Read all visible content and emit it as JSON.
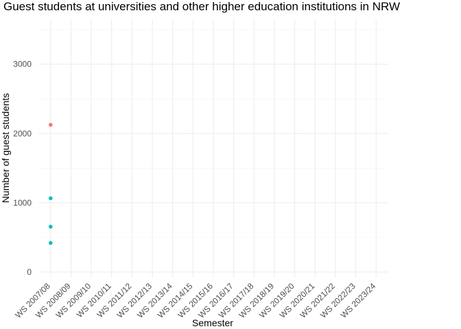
{
  "chart_data": {
    "type": "scatter",
    "title": "Guest students at universities and other higher education institutions in NRW",
    "xlabel": "Semester",
    "ylabel": "Number of guest students",
    "categories": [
      "WS 2007/08",
      "WS 2008/09",
      "WS 2009/10",
      "WS 2010/11",
      "WS 2011/12",
      "WS 2012/13",
      "WS 2013/14",
      "WS 2014/15",
      "WS 2015/16",
      "WS 2016/17",
      "WS 2017/18",
      "WS 2018/19",
      "WS 2019/20",
      "WS 2020/21",
      "WS 2021/22",
      "WS 2022/23",
      "WS 2023/24"
    ],
    "yticks": [
      0,
      1000,
      2000,
      3000
    ],
    "ylim": [
      -80,
      3650
    ],
    "grid": true,
    "legend": "none",
    "series": [
      {
        "color": "#F8766D",
        "values": [
          2125,
          null,
          null,
          null,
          null,
          null,
          null,
          null,
          null,
          null,
          null,
          null,
          null,
          null,
          null,
          null,
          null
        ]
      },
      {
        "color": "#00BFC4",
        "values": [
          1065,
          null,
          null,
          null,
          null,
          null,
          null,
          null,
          null,
          null,
          null,
          null,
          null,
          null,
          null,
          null,
          null
        ]
      },
      {
        "color": "#00BFC4",
        "values": [
          655,
          null,
          null,
          null,
          null,
          null,
          null,
          null,
          null,
          null,
          null,
          null,
          null,
          null,
          null,
          null,
          null
        ]
      },
      {
        "color": "#00BFC4",
        "values": [
          420,
          null,
          null,
          null,
          null,
          null,
          null,
          null,
          null,
          null,
          null,
          null,
          null,
          null,
          null,
          null,
          null
        ]
      }
    ]
  }
}
